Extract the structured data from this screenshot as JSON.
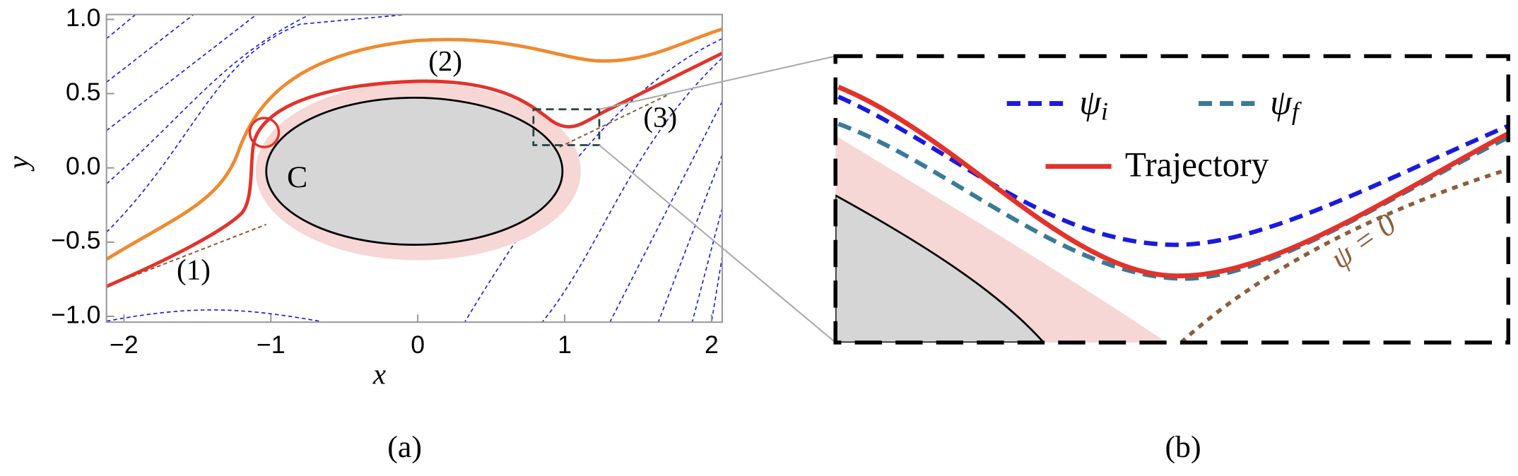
{
  "panel_a": {
    "xticks": [
      {
        "value": -2,
        "label": "−2"
      },
      {
        "value": -1,
        "label": "−1"
      },
      0,
      1,
      2
    ],
    "yticks": [
      {
        "value": -1,
        "label": "−1.0"
      },
      {
        "value": -0.5,
        "label": "−0.5"
      },
      {
        "value": 0,
        "label": "0.0"
      },
      0.5,
      {
        "value": 1,
        "label": "1.0"
      }
    ],
    "xlabel": "x",
    "ylabel": "y",
    "annotations": [
      "(1)",
      "(2)",
      "(3)",
      "C"
    ],
    "caption": "(a)"
  },
  "panel_b": {
    "legend": [
      {
        "symbol": "ψ",
        "subscript": "i"
      },
      {
        "symbol": "ψ",
        "subscript": "f"
      },
      {
        "text": "Trajectory"
      }
    ],
    "annotation": "ψ = 0",
    "caption": "(b)"
  }
}
